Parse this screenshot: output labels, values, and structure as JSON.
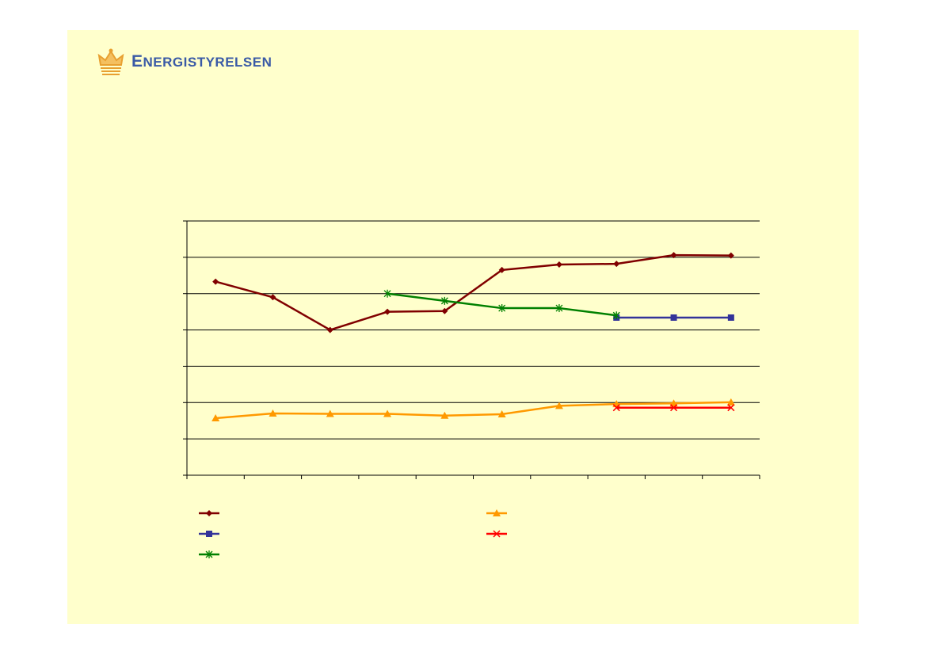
{
  "header": {
    "logo_initial": "E",
    "logo_rest": "NERGISTYRELSEN",
    "brand_color": "#3a5aa6",
    "crown_color": "#e8a030",
    "crown_icon": "crown-icon"
  },
  "colors": {
    "slide_background": "#ffffcc"
  },
  "chart_data": {
    "type": "line",
    "title": "",
    "xlabel": "",
    "ylabel": "",
    "x": [
      1,
      2,
      3,
      4,
      5,
      6,
      7,
      8,
      9,
      10
    ],
    "ylim": [
      0,
      7
    ],
    "grid": true,
    "legend_placement": "bottom",
    "series": [
      {
        "color": "#800000",
        "marker": "diamond",
        "values": [
          5.33,
          4.9,
          4.0,
          4.5,
          4.52,
          5.65,
          5.8,
          5.82,
          6.06,
          6.05
        ]
      },
      {
        "color": "#ff9900",
        "marker": "triangle",
        "values": [
          1.57,
          1.7,
          1.69,
          1.69,
          1.64,
          1.68,
          1.91,
          1.96,
          1.98,
          2.01
        ]
      },
      {
        "color": "#333399",
        "marker": "square",
        "values": [
          null,
          null,
          null,
          null,
          null,
          null,
          null,
          4.34,
          4.34,
          4.34
        ]
      },
      {
        "color": "#ff0000",
        "marker": "x",
        "values": [
          null,
          null,
          null,
          null,
          null,
          null,
          null,
          1.86,
          1.86,
          1.86
        ]
      },
      {
        "color": "#008000",
        "marker": "star",
        "values": [
          null,
          null,
          null,
          5.0,
          4.8,
          4.6,
          4.6,
          4.4,
          null,
          null
        ]
      }
    ]
  }
}
